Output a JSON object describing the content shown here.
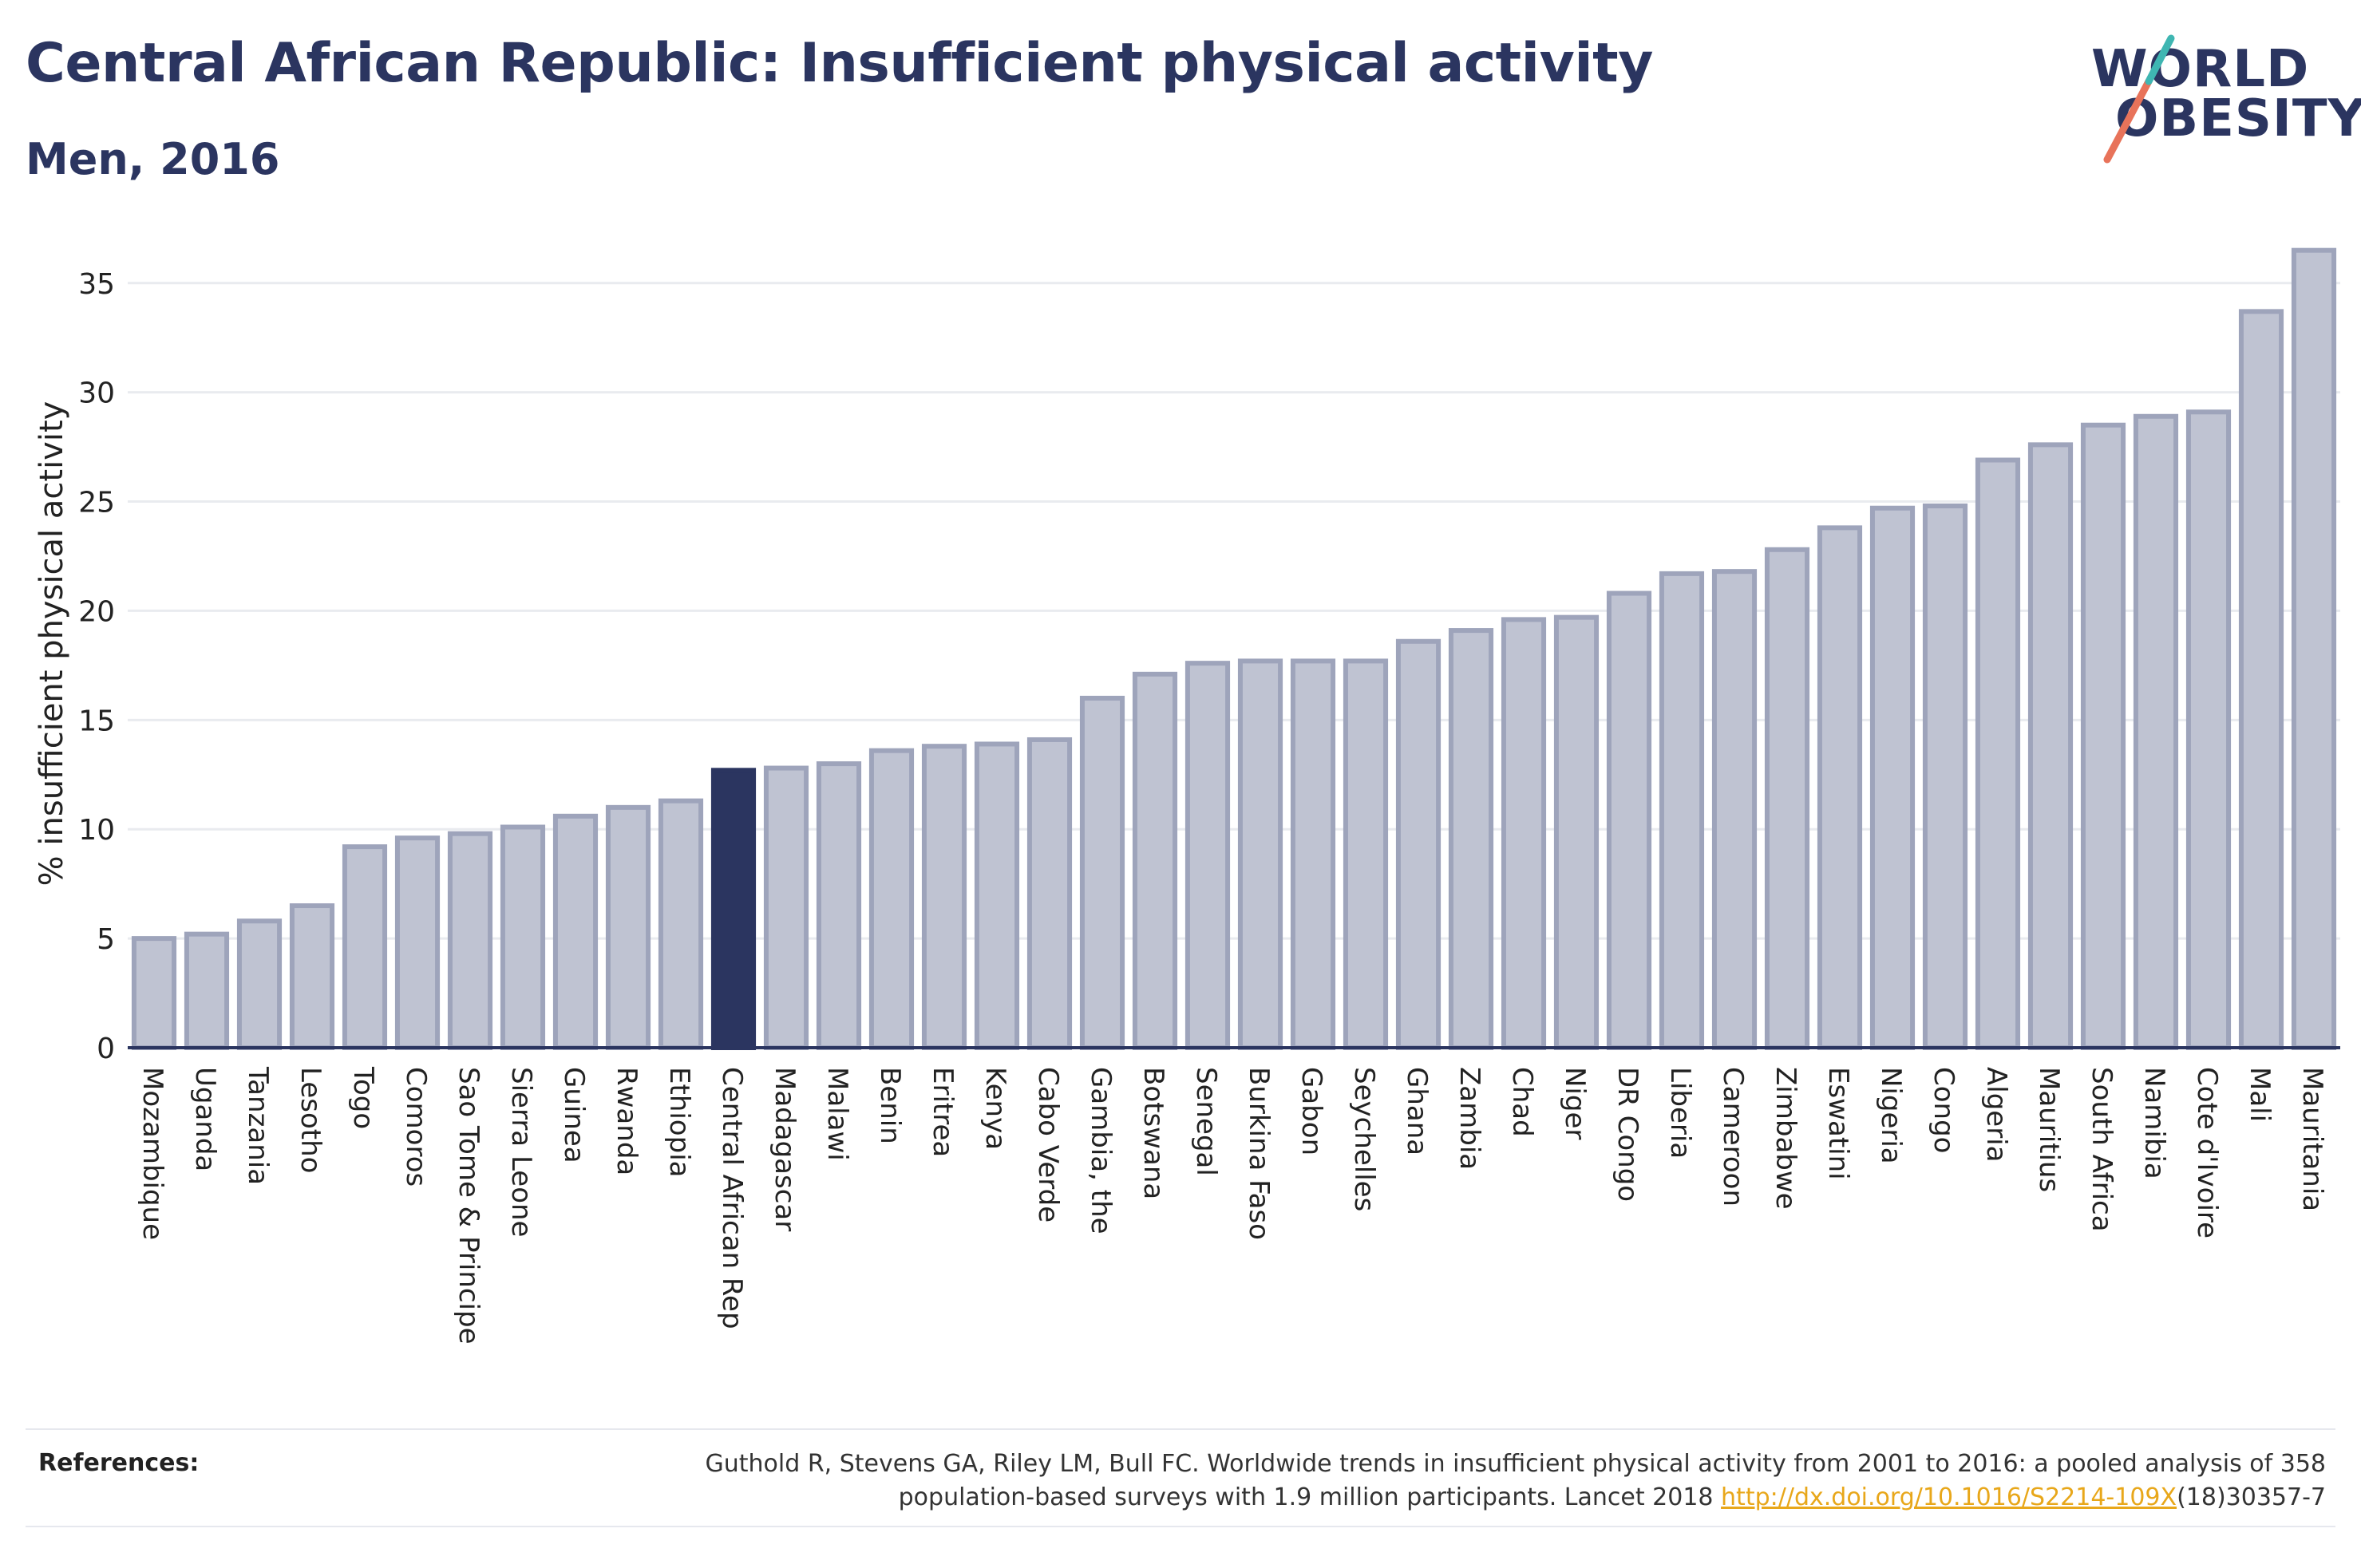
{
  "header": {
    "title": "Central African Republic: Insufficient physical activity",
    "subtitle": "Men, 2016"
  },
  "logo": {
    "line1": "WORLD",
    "line2": "OBESITY",
    "slash_colors": [
      "#e8735a",
      "#3fb6b2"
    ]
  },
  "colors": {
    "bar_fill": "#bfc3d2",
    "bar_stroke": "#9ea4bb",
    "highlight": "#2b3560",
    "grid": "#e9ebef",
    "axis": "#2b3560",
    "text": "#222222",
    "link": "#e8a71a"
  },
  "chart_data": {
    "type": "bar",
    "title": "Central African Republic: Insufficient physical activity",
    "subtitle": "Men, 2016",
    "xlabel": "",
    "ylabel": "% insufficient physical activity",
    "ylim": [
      0,
      37
    ],
    "yticks": [
      0,
      5,
      10,
      15,
      20,
      25,
      30,
      35
    ],
    "grid": true,
    "highlight_category": "Central African Rep",
    "categories": [
      "Mozambique",
      "Uganda",
      "Tanzania",
      "Lesotho",
      "Togo",
      "Comoros",
      "Sao Tome & Principe",
      "Sierra Leone",
      "Guinea",
      "Rwanda",
      "Ethiopia",
      "Central African Rep",
      "Madagascar",
      "Malawi",
      "Benin",
      "Eritrea",
      "Kenya",
      "Cabo Verde",
      "Gambia, the",
      "Botswana",
      "Senegal",
      "Burkina Faso",
      "Gabon",
      "Seychelles",
      "Ghana",
      "Zambia",
      "Chad",
      "Niger",
      "DR Congo",
      "Liberia",
      "Cameroon",
      "Zimbabwe",
      "Eswatini",
      "Nigeria",
      "Congo",
      "Algeria",
      "Mauritius",
      "South Africa",
      "Namibia",
      "Cote d'Ivoire",
      "Mali",
      "Mauritania"
    ],
    "values": [
      5.0,
      5.2,
      5.8,
      6.5,
      9.2,
      9.6,
      9.8,
      10.1,
      10.6,
      11.0,
      11.3,
      12.7,
      12.8,
      13.0,
      13.6,
      13.8,
      13.9,
      14.1,
      16.0,
      17.1,
      17.6,
      17.7,
      17.7,
      17.7,
      18.6,
      19.1,
      19.6,
      19.7,
      20.8,
      21.7,
      21.8,
      22.8,
      23.8,
      24.7,
      24.8,
      26.9,
      27.6,
      28.5,
      28.9,
      29.1,
      33.7,
      36.5
    ]
  },
  "references": {
    "label": "References:",
    "text_line1": "Guthold R, Stevens GA, Riley LM, Bull FC. Worldwide trends in insufficient physical activity from 2001 to 2016: a pooled analysis of 358",
    "text_line2_pre": "population-based surveys with 1.9 million participants. Lancet 2018 ",
    "link_text": "http://dx.doi.org/10.1016/S2214-109X",
    "text_line2_post": "(18)30357-7"
  }
}
